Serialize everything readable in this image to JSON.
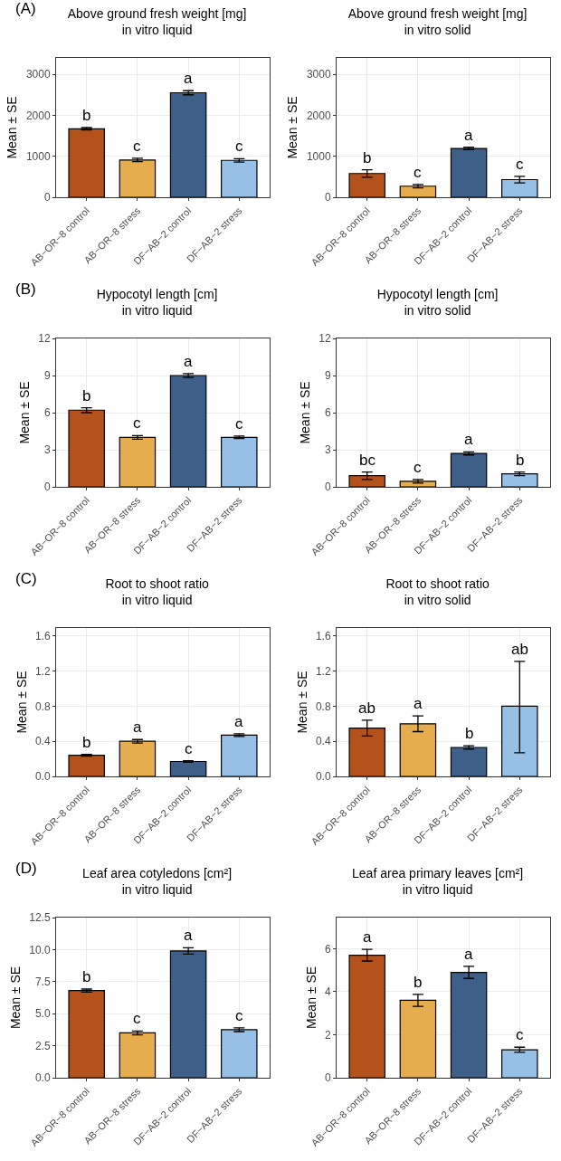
{
  "chart_data": [
    {
      "type": "bar",
      "title": "Above ground fresh weight [mg]",
      "subtitle": "in vitro liquid",
      "ylabel": "Mean ± SE",
      "categories": [
        "AB−OR−8 control",
        "AB−OR−8 stress",
        "DF−AB−2 control",
        "DF−AB−2 stress"
      ],
      "colors": [
        "#b5521b",
        "#e5ad4e",
        "#3d5f88",
        "#97c0e6"
      ],
      "values": [
        1670,
        910,
        2550,
        900
      ],
      "errors": [
        30,
        40,
        50,
        40
      ],
      "value_labels": [
        "b",
        "c",
        "a",
        "c"
      ],
      "ylim": [
        0,
        3400
      ],
      "yticks": [
        0,
        1000,
        2000,
        3000
      ],
      "grid": true,
      "annotations": [
        "(A)"
      ]
    },
    {
      "type": "bar",
      "title": "Above ground fresh weight [mg]",
      "subtitle": "in vitro solid",
      "ylabel": "Mean ± SE",
      "categories": [
        "AB−OR−8 control",
        "AB−OR−8 stress",
        "DF−AB−2 control",
        "DF−AB−2 stress"
      ],
      "colors": [
        "#b5521b",
        "#e5ad4e",
        "#3d5f88",
        "#97c0e6"
      ],
      "values": [
        580,
        270,
        1190,
        430
      ],
      "errors": [
        90,
        40,
        30,
        80
      ],
      "value_labels": [
        "b",
        "c",
        "a",
        "c"
      ],
      "ylim": [
        0,
        3400
      ],
      "yticks": [
        0,
        1000,
        2000,
        3000
      ],
      "grid": true
    },
    {
      "type": "bar",
      "title": "Hypocotyl length [cm]",
      "subtitle": "in vitro liquid",
      "ylabel": "Mean ± SE",
      "categories": [
        "AB−OR−8 control",
        "AB−OR−8 stress",
        "DF−AB−2 control",
        "DF−AB−2 stress"
      ],
      "colors": [
        "#b5521b",
        "#e5ad4e",
        "#3d5f88",
        "#97c0e6"
      ],
      "values": [
        6.2,
        4.0,
        9.0,
        4.0
      ],
      "errors": [
        0.2,
        0.15,
        0.15,
        0.1
      ],
      "value_labels": [
        "b",
        "c",
        "a",
        "c"
      ],
      "ylim": [
        0,
        12
      ],
      "yticks": [
        0,
        3,
        6,
        9,
        12
      ],
      "grid": true,
      "annotations": [
        "(B)"
      ]
    },
    {
      "type": "bar",
      "title": "Hypocotyl length [cm]",
      "subtitle": "in vitro solid",
      "ylabel": "Mean ± SE",
      "categories": [
        "AB−OR−8 control",
        "AB−OR−8 stress",
        "DF−AB−2 control",
        "DF−AB−2 stress"
      ],
      "colors": [
        "#b5521b",
        "#e5ad4e",
        "#3d5f88",
        "#97c0e6"
      ],
      "values": [
        0.9,
        0.45,
        2.7,
        1.05
      ],
      "errors": [
        0.3,
        0.15,
        0.12,
        0.15
      ],
      "value_labels": [
        "bc",
        "c",
        "a",
        "b"
      ],
      "ylim": [
        0,
        12
      ],
      "yticks": [
        0,
        3,
        6,
        9,
        12
      ],
      "grid": true
    },
    {
      "type": "bar",
      "title": "Root to shoot ratio",
      "subtitle": "in vitro liquid",
      "ylabel": "Mean ± SE",
      "categories": [
        "AB−OR−8 control",
        "AB−OR−8 stress",
        "DF−AB−2 control",
        "DF−AB−2 stress"
      ],
      "colors": [
        "#b5521b",
        "#e5ad4e",
        "#3d5f88",
        "#97c0e6"
      ],
      "values": [
        0.24,
        0.4,
        0.17,
        0.47
      ],
      "errors": [
        0.01,
        0.02,
        0.01,
        0.015
      ],
      "value_labels": [
        "b",
        "a",
        "c",
        "a"
      ],
      "ylim": [
        0,
        1.69
      ],
      "yticks": [
        {
          "value": 0,
          "label": "0.0"
        },
        0.4,
        0.8,
        1.2,
        1.6
      ],
      "grid": true,
      "annotations": [
        "(C)"
      ]
    },
    {
      "type": "bar",
      "title": "Root to shoot ratio",
      "subtitle": "in vitro solid",
      "ylabel": "Mean ± SE",
      "categories": [
        "AB−OR−8 control",
        "AB−OR−8 stress",
        "DF−AB−2 control",
        "DF−AB−2 stress"
      ],
      "colors": [
        "#b5521b",
        "#e5ad4e",
        "#3d5f88",
        "#97c0e6"
      ],
      "values": [
        0.55,
        0.6,
        0.33,
        0.8
      ],
      "errors": [
        0.09,
        0.09,
        0.02,
        [
          0.27,
          1.31
        ]
      ],
      "value_labels": [
        "ab",
        "a",
        "b",
        "ab"
      ],
      "ylim": [
        0,
        1.69
      ],
      "yticks": [
        {
          "value": 0,
          "label": "0.0"
        },
        0.4,
        0.8,
        1.2,
        1.6
      ],
      "grid": true
    },
    {
      "type": "bar",
      "title": "Leaf area cotyledons [cm²]",
      "subtitle": "in vitro liquid",
      "ylabel": "Mean ± SE",
      "categories": [
        "AB−OR−8 control",
        "AB−OR−8 stress",
        "DF−AB−2 control",
        "DF−AB−2 stress"
      ],
      "colors": [
        "#b5521b",
        "#e5ad4e",
        "#3d5f88",
        "#97c0e6"
      ],
      "values": [
        6.8,
        3.5,
        9.9,
        3.75
      ],
      "errors": [
        0.12,
        0.15,
        0.25,
        0.15
      ],
      "value_labels": [
        "b",
        "c",
        "a",
        "c"
      ],
      "ylim": [
        0,
        12.5
      ],
      "yticks": [
        {
          "value": 0,
          "label": "0.0"
        },
        2.5,
        {
          "value": 5,
          "label": "5.0"
        },
        7.5,
        {
          "value": 10,
          "label": "10.0"
        },
        12.5
      ],
      "grid": true,
      "annotations": [
        "(D)"
      ]
    },
    {
      "type": "bar",
      "title": "Leaf area primary leaves [cm²]",
      "subtitle": "in vitro liquid",
      "ylabel": "Mean ± SE",
      "categories": [
        "AB−OR−8 control",
        "AB−OR−8 stress",
        "DF−AB−2 control",
        "DF−AB−2 stress"
      ],
      "colors": [
        "#b5521b",
        "#e5ad4e",
        "#3d5f88",
        "#97c0e6"
      ],
      "values": [
        5.7,
        3.6,
        4.9,
        1.3
      ],
      "errors": [
        0.27,
        0.28,
        0.28,
        0.12
      ],
      "value_labels": [
        "a",
        "b",
        "a",
        "c"
      ],
      "ylim": [
        0,
        7.45
      ],
      "yticks": [
        0,
        2,
        4,
        6
      ],
      "grid": true
    }
  ]
}
